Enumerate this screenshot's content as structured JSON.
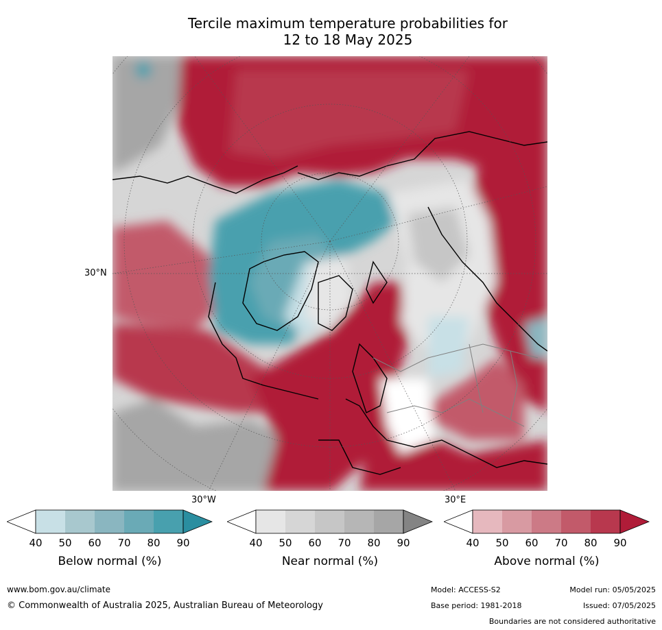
{
  "title_line1": "Tercile maximum temperature probabilities for",
  "title_line2": "12 to 18 May 2025",
  "map": {
    "lat_label": "30°N",
    "lon_label_left": "30°W",
    "lon_label_right": "30°E"
  },
  "colorbars": [
    {
      "name": "below",
      "label": "Below normal (%)",
      "ticks": [
        "40",
        "50",
        "60",
        "70",
        "80",
        "90"
      ],
      "colors": [
        "#ffffff",
        "#c8e0e6",
        "#a8c8ce",
        "#8ab6c0",
        "#6aaab6",
        "#48a0ae",
        "#2a8ea0"
      ]
    },
    {
      "name": "near",
      "label": "Near normal (%)",
      "ticks": [
        "40",
        "50",
        "60",
        "70",
        "80",
        "90"
      ],
      "colors": [
        "#ffffff",
        "#e6e6e6",
        "#d6d6d6",
        "#c6c6c6",
        "#b6b6b6",
        "#a6a6a6",
        "#848484"
      ]
    },
    {
      "name": "above",
      "label": "Above normal (%)",
      "ticks": [
        "40",
        "50",
        "60",
        "70",
        "80",
        "90"
      ],
      "colors": [
        "#ffffff",
        "#e6b8be",
        "#d89aa2",
        "#cc7a86",
        "#c25a6a",
        "#b8384e",
        "#b01c38"
      ]
    }
  ],
  "footer": {
    "website": "www.bom.gov.au/climate",
    "copyright": "© Commonwealth of Australia 2025, Australian Bureau of Meteorology",
    "model": "Model: ACCESS-S2",
    "base_period": "Base period: 1981-2018",
    "model_run": "Model run: 05/05/2025",
    "issued": "Issued: 07/05/2025",
    "disclaimer": "Boundaries are not considered authoritative"
  }
}
